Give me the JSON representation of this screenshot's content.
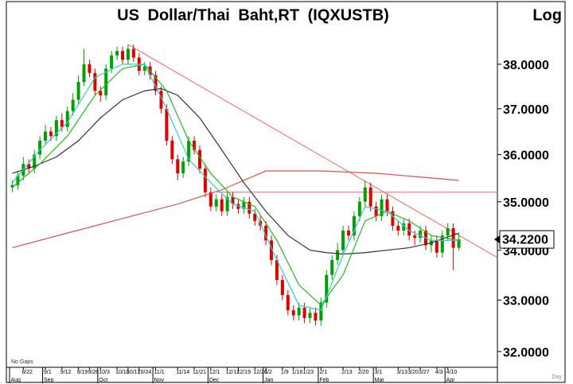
{
  "chart_data": {
    "type": "candlestick",
    "title": "US Dollar/Thai Baht,RT (IQXUSTB)",
    "scale_label": "Log",
    "period_label": "Day",
    "gaps_label": "No Gaps",
    "log_scale": true,
    "categories": [
      null,
      null,
      "8/22",
      null,
      null,
      null,
      "9/1",
      null,
      null,
      "9/12",
      null,
      null,
      "9/19",
      null,
      "9/26",
      null,
      "10/3",
      null,
      null,
      "10/10",
      null,
      "10/17",
      null,
      "10/24",
      null,
      null,
      "11/1",
      null,
      null,
      null,
      "11/14",
      null,
      null,
      "11/21",
      null,
      null,
      "12/1",
      null,
      null,
      "12/12",
      null,
      "12/19",
      null,
      null,
      "12/26",
      null,
      "1/2",
      null,
      null,
      "1/9",
      null,
      "1/16",
      null,
      "1/23",
      null,
      null,
      "2/1",
      null,
      null,
      null,
      "2/13",
      null,
      null,
      "2/20",
      null,
      null,
      "3/1",
      null,
      null,
      null,
      "3/13",
      null,
      "3/20",
      null,
      "3/27",
      null,
      null,
      "4/3",
      null,
      "4/10",
      null,
      null
    ],
    "months": [
      "Aug",
      null,
      null,
      null,
      null,
      null,
      "Sep",
      null,
      null,
      null,
      null,
      null,
      null,
      null,
      null,
      null,
      "Oct",
      null,
      null,
      null,
      null,
      null,
      null,
      null,
      null,
      null,
      "Nov",
      null,
      null,
      null,
      null,
      null,
      null,
      null,
      null,
      null,
      "Dec",
      null,
      null,
      null,
      null,
      null,
      null,
      null,
      null,
      null,
      "Jan",
      null,
      null,
      null,
      null,
      null,
      null,
      null,
      null,
      null,
      "Feb",
      null,
      null,
      null,
      null,
      null,
      null,
      null,
      null,
      null,
      "Mar",
      null,
      null,
      null,
      null,
      null,
      null,
      null,
      null,
      null,
      null,
      null,
      null,
      "Apr",
      null,
      null
    ],
    "open": [
      35.3,
      35.35,
      35.55,
      35.8,
      35.7,
      36.0,
      36.3,
      36.5,
      36.4,
      36.75,
      36.6,
      36.95,
      37.2,
      37.6,
      38.0,
      37.8,
      37.4,
      37.3,
      37.9,
      38.2,
      38.3,
      38.1,
      38.35,
      38.15,
      37.85,
      37.95,
      37.75,
      37.4,
      37.0,
      36.3,
      35.9,
      35.6,
      35.85,
      36.3,
      36.1,
      35.7,
      35.2,
      34.9,
      35.05,
      34.8,
      35.1,
      34.95,
      34.85,
      35.0,
      34.75,
      34.6,
      34.5,
      34.2,
      33.8,
      33.4,
      33.1,
      32.8,
      32.7,
      32.85,
      32.65,
      32.75,
      32.6,
      32.95,
      33.5,
      33.8,
      34.0,
      34.4,
      34.3,
      34.7,
      35.0,
      35.3,
      34.9,
      34.7,
      35.05,
      34.8,
      34.5,
      34.4,
      34.55,
      34.3,
      34.25,
      34.4,
      34.1,
      34.2,
      33.95,
      34.3,
      34.45,
      34.05
    ],
    "high": [
      35.45,
      35.65,
      35.95,
      35.9,
      36.1,
      36.4,
      36.65,
      36.6,
      36.85,
      36.9,
      37.05,
      37.35,
      37.75,
      38.35,
      38.1,
      37.9,
      37.5,
      38.0,
      38.3,
      38.4,
      38.4,
      38.45,
      38.45,
      38.25,
      38.05,
      38.05,
      37.85,
      37.5,
      37.1,
      36.4,
      36.0,
      35.95,
      36.4,
      36.4,
      36.2,
      35.8,
      35.3,
      35.15,
      35.15,
      35.2,
      35.2,
      35.05,
      35.1,
      35.1,
      34.85,
      34.7,
      34.6,
      34.3,
      33.9,
      33.5,
      33.2,
      32.9,
      32.95,
      32.95,
      32.85,
      32.85,
      33.05,
      33.6,
      33.9,
      34.15,
      34.5,
      34.5,
      34.8,
      35.1,
      35.45,
      35.4,
      35.0,
      35.15,
      35.15,
      34.9,
      34.6,
      34.65,
      34.65,
      34.4,
      34.5,
      34.5,
      34.3,
      34.3,
      34.4,
      34.55,
      34.55,
      34.35
    ],
    "low": [
      35.2,
      35.25,
      35.45,
      35.6,
      35.6,
      35.9,
      36.2,
      36.3,
      36.3,
      36.5,
      36.5,
      36.85,
      37.1,
      37.5,
      37.7,
      37.3,
      37.15,
      37.2,
      37.8,
      38.1,
      38.0,
      38.0,
      38.05,
      37.75,
      37.75,
      37.65,
      37.3,
      36.9,
      36.2,
      35.8,
      35.45,
      35.5,
      35.75,
      36.0,
      35.6,
      35.1,
      34.8,
      34.8,
      34.7,
      34.7,
      34.85,
      34.75,
      34.75,
      34.65,
      34.5,
      34.4,
      34.1,
      33.7,
      33.3,
      33.0,
      32.7,
      32.6,
      32.6,
      32.55,
      32.55,
      32.5,
      32.5,
      32.85,
      33.4,
      33.7,
      33.9,
      34.2,
      34.2,
      34.6,
      34.9,
      34.8,
      34.6,
      34.6,
      34.7,
      34.4,
      34.3,
      34.3,
      34.2,
      34.1,
      34.15,
      34.0,
      33.95,
      33.85,
      33.85,
      34.2,
      33.6,
      34.0
    ],
    "close": [
      35.35,
      35.55,
      35.8,
      35.7,
      36.0,
      36.3,
      36.5,
      36.4,
      36.75,
      36.6,
      36.95,
      37.2,
      37.6,
      38.0,
      37.8,
      37.4,
      37.3,
      37.9,
      38.2,
      38.3,
      38.1,
      38.35,
      38.15,
      37.85,
      37.95,
      37.75,
      37.4,
      37.0,
      36.3,
      35.9,
      35.6,
      35.85,
      36.3,
      36.1,
      35.7,
      35.2,
      34.9,
      35.05,
      34.8,
      35.1,
      34.95,
      34.85,
      35.0,
      34.75,
      34.6,
      34.5,
      34.2,
      33.8,
      33.4,
      33.1,
      32.8,
      32.7,
      32.85,
      32.65,
      32.75,
      32.6,
      32.95,
      33.5,
      33.8,
      34.0,
      34.4,
      34.3,
      34.7,
      35.0,
      35.3,
      34.9,
      34.7,
      35.05,
      34.8,
      34.5,
      34.4,
      34.55,
      34.3,
      34.25,
      34.4,
      34.1,
      34.2,
      33.95,
      34.3,
      34.45,
      34.05,
      34.22
    ],
    "up_color": "#00a000",
    "down_color": "#e00000",
    "lines": [
      {
        "color": "#e05050",
        "x": [
          0,
          10,
          20,
          30,
          38,
          46,
          56,
          66,
          81
        ],
        "values": [
          34.05,
          34.35,
          34.65,
          34.95,
          35.25,
          35.65,
          35.65,
          35.6,
          35.45
        ]
      },
      {
        "color": "#333333",
        "x": [
          0,
          4,
          8,
          12,
          16,
          20,
          24,
          27,
          30,
          34,
          38,
          42,
          46,
          50,
          54,
          57,
          60,
          64,
          68,
          72,
          76,
          81
        ],
        "values": [
          35.6,
          35.75,
          35.95,
          36.3,
          36.8,
          37.2,
          37.4,
          37.45,
          37.3,
          36.8,
          36.1,
          35.4,
          34.8,
          34.3,
          34.0,
          33.95,
          33.92,
          33.95,
          34.0,
          34.05,
          34.15,
          34.35
        ]
      },
      {
        "color": "#22bb22",
        "x": [
          0,
          5,
          10,
          15,
          20,
          24,
          28,
          32,
          36,
          40,
          44,
          48,
          52,
          56,
          60,
          64,
          68,
          72,
          76,
          81
        ],
        "values": [
          35.3,
          35.8,
          36.4,
          37.3,
          37.9,
          38.0,
          37.4,
          36.3,
          35.6,
          35.1,
          34.9,
          34.2,
          33.3,
          32.9,
          33.5,
          34.6,
          34.8,
          34.6,
          34.3,
          34.2
        ]
      },
      {
        "color": "#33cccc",
        "x": [
          0,
          5,
          10,
          15,
          20,
          24,
          28,
          32,
          36,
          40,
          44,
          48,
          52,
          56,
          60,
          64,
          68,
          72,
          76,
          81
        ],
        "values": [
          35.4,
          36.1,
          36.7,
          37.7,
          38.0,
          38.0,
          37.0,
          35.9,
          35.4,
          34.95,
          34.8,
          33.8,
          32.9,
          32.8,
          33.9,
          34.9,
          34.8,
          34.4,
          34.2,
          34.2
        ]
      }
    ],
    "trendlines": [
      {
        "color": "#ff6060",
        "x": [
          21,
          88
        ],
        "values": [
          38.45,
          33.85
        ]
      },
      {
        "color": "#ff6060",
        "x": [
          37,
          88
        ],
        "values": [
          35.2,
          35.2
        ]
      }
    ],
    "ylim": [
      31.7,
      39.3
    ],
    "yticks": [
      {
        "value": 32,
        "label": "32.0000"
      },
      {
        "value": 33,
        "label": "33.0000"
      },
      {
        "value": 34,
        "label": "34.0000"
      },
      {
        "value": 35,
        "label": "35.0000"
      },
      {
        "value": 36,
        "label": "36.0000"
      },
      {
        "value": 37,
        "label": "37.0000"
      },
      {
        "value": 38,
        "label": "38.0000"
      }
    ],
    "last_price": {
      "value": 34.22,
      "label": "34.2200"
    }
  }
}
